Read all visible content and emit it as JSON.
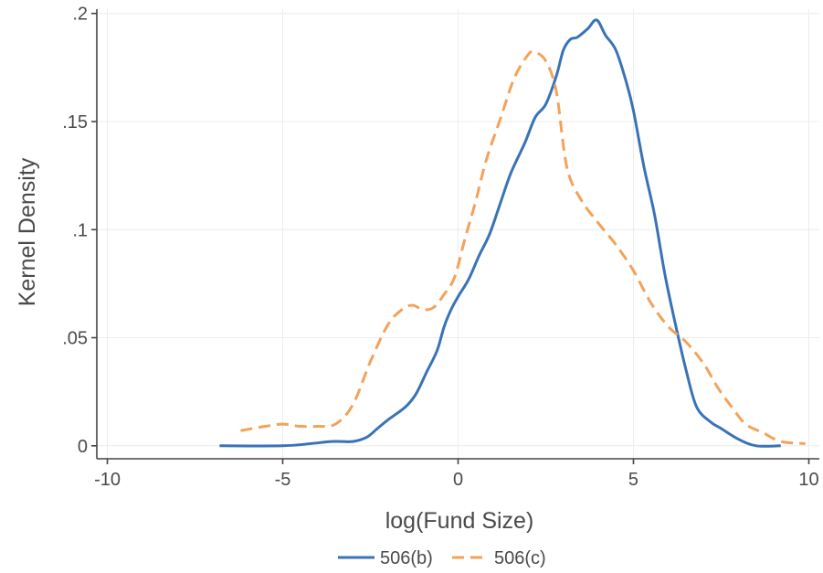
{
  "chart_data": {
    "type": "line",
    "title": "",
    "xlabel": "log(Fund Size)",
    "ylabel": "Kernel Density",
    "xlim": [
      -10.3,
      10.3
    ],
    "ylim": [
      -0.006,
      0.202
    ],
    "x_ticks": [
      -10,
      -5,
      0,
      5,
      10
    ],
    "x_tick_labels": [
      "-10",
      "-5",
      "0",
      "5",
      "10"
    ],
    "y_ticks": [
      0,
      0.05,
      0.1,
      0.15,
      0.2
    ],
    "y_tick_labels": [
      "0",
      ".05",
      ".1",
      ".15",
      ".2"
    ],
    "grid": true,
    "legend_position": "bottom",
    "series": [
      {
        "name": "506(b)",
        "color": "#3a72b8",
        "dash": "solid",
        "x": [
          -6.8,
          -5.0,
          -4.2,
          -3.6,
          -3.0,
          -2.6,
          -2.3,
          -2.0,
          -1.5,
          -1.2,
          -0.9,
          -0.6,
          -0.4,
          -0.2,
          0.0,
          0.3,
          0.6,
          0.9,
          1.2,
          1.5,
          1.9,
          2.2,
          2.5,
          2.8,
          3.0,
          3.2,
          3.4,
          3.7,
          3.95,
          4.2,
          4.5,
          4.8,
          5.0,
          5.3,
          5.6,
          5.9,
          6.2,
          6.5,
          6.8,
          7.2,
          7.5,
          8.0,
          8.5,
          9.2
        ],
        "y": [
          0.0,
          0.0,
          0.001,
          0.002,
          0.002,
          0.004,
          0.008,
          0.012,
          0.018,
          0.024,
          0.034,
          0.044,
          0.055,
          0.063,
          0.069,
          0.077,
          0.088,
          0.098,
          0.112,
          0.126,
          0.14,
          0.152,
          0.158,
          0.171,
          0.183,
          0.188,
          0.189,
          0.193,
          0.197,
          0.19,
          0.183,
          0.168,
          0.155,
          0.129,
          0.107,
          0.079,
          0.056,
          0.035,
          0.018,
          0.011,
          0.008,
          0.003,
          0.0,
          0.0
        ]
      },
      {
        "name": "506(c)",
        "color": "#f4a25a",
        "dash": "dashed",
        "x": [
          -6.2,
          -5.5,
          -5.0,
          -4.5,
          -4.0,
          -3.5,
          -3.0,
          -2.5,
          -2.0,
          -1.6,
          -1.3,
          -1.0,
          -0.7,
          -0.4,
          -0.1,
          0.2,
          0.5,
          0.8,
          1.2,
          1.6,
          2.0,
          2.2,
          2.5,
          2.8,
          3.1,
          3.5,
          4.0,
          4.5,
          5.0,
          5.5,
          6.0,
          6.5,
          7.0,
          7.4,
          7.8,
          8.2,
          8.7,
          9.2,
          9.9
        ],
        "y": [
          0.007,
          0.009,
          0.01,
          0.009,
          0.009,
          0.01,
          0.019,
          0.039,
          0.056,
          0.063,
          0.065,
          0.063,
          0.064,
          0.07,
          0.078,
          0.096,
          0.113,
          0.132,
          0.151,
          0.17,
          0.181,
          0.182,
          0.178,
          0.164,
          0.129,
          0.114,
          0.103,
          0.093,
          0.081,
          0.066,
          0.055,
          0.048,
          0.038,
          0.027,
          0.018,
          0.01,
          0.006,
          0.002,
          0.001
        ]
      }
    ]
  }
}
